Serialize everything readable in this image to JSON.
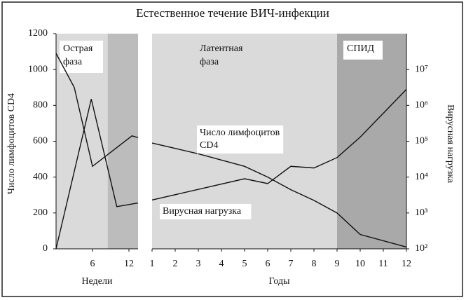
{
  "chart_data": [
    {
      "type": "line",
      "title": "Естественное течение ВИЧ-инфекции",
      "x_label": "Недели",
      "y_label": "Число лимфоцитов CD4",
      "xlim": [
        0,
        13.5
      ],
      "xticks": [
        6,
        12
      ],
      "ylim": [
        0,
        1200
      ],
      "yticks": [
        0,
        200,
        400,
        600,
        800,
        1000,
        1200
      ],
      "regions": [
        {
          "label": [
            "Острая",
            "фаза"
          ],
          "x": [
            0,
            8.5
          ],
          "color": "#dadada"
        },
        {
          "x": [
            8.5,
            13.5
          ],
          "color": "#bcbcbc"
        }
      ],
      "series": [
        {
          "color": "#111111",
          "x": [
            0,
            3,
            6,
            12.5,
            13.5
          ],
          "values": [
            1090,
            900,
            460,
            630,
            620
          ]
        },
        {
          "color": "#111111",
          "axis": "y2",
          "x": [
            0,
            5.8,
            10,
            13.5
          ],
          "values": [
            100,
            1500000,
            1500,
            1900
          ]
        }
      ]
    },
    {
      "type": "line",
      "x_label": "Годы",
      "y2_label": "Вирусная нагрузка",
      "xlim": [
        1,
        12
      ],
      "xticks": [
        1,
        2,
        3,
        4,
        5,
        6,
        7,
        8,
        9,
        10,
        11,
        12
      ],
      "y2lim": [
        100,
        100000000
      ],
      "y2_log": true,
      "y2ticks": [
        {
          "value": 100,
          "label": "10²"
        },
        {
          "value": 1000,
          "label": "10³"
        },
        {
          "value": 10000,
          "label": "10⁴"
        },
        {
          "value": 100000,
          "label": "10⁵"
        },
        {
          "value": 1000000,
          "label": "10⁶"
        },
        {
          "value": 10000000,
          "label": "10⁷"
        }
      ],
      "regions": [
        {
          "label": [
            "Латентная",
            "фаза"
          ],
          "x": [
            1,
            9
          ],
          "color": "#dadada"
        },
        {
          "label": [
            "СПИД"
          ],
          "x": [
            9,
            12
          ],
          "color": "#a9a9a9"
        }
      ],
      "series": [
        {
          "name": "Число лимфоцитов CD4",
          "color": "#111111",
          "x": [
            1,
            3,
            5,
            6,
            7,
            8,
            9,
            10,
            12
          ],
          "values": [
            590,
            530,
            460,
            400,
            330,
            270,
            200,
            80,
            10
          ]
        },
        {
          "name": "Вирусная нагрузка",
          "color": "#111111",
          "axis": "y2",
          "x": [
            1,
            5,
            6,
            7,
            8,
            9,
            10,
            12
          ],
          "values": [
            2300,
            9000,
            6600,
            20000,
            18000,
            35000,
            130000,
            2800000
          ]
        }
      ]
    }
  ]
}
